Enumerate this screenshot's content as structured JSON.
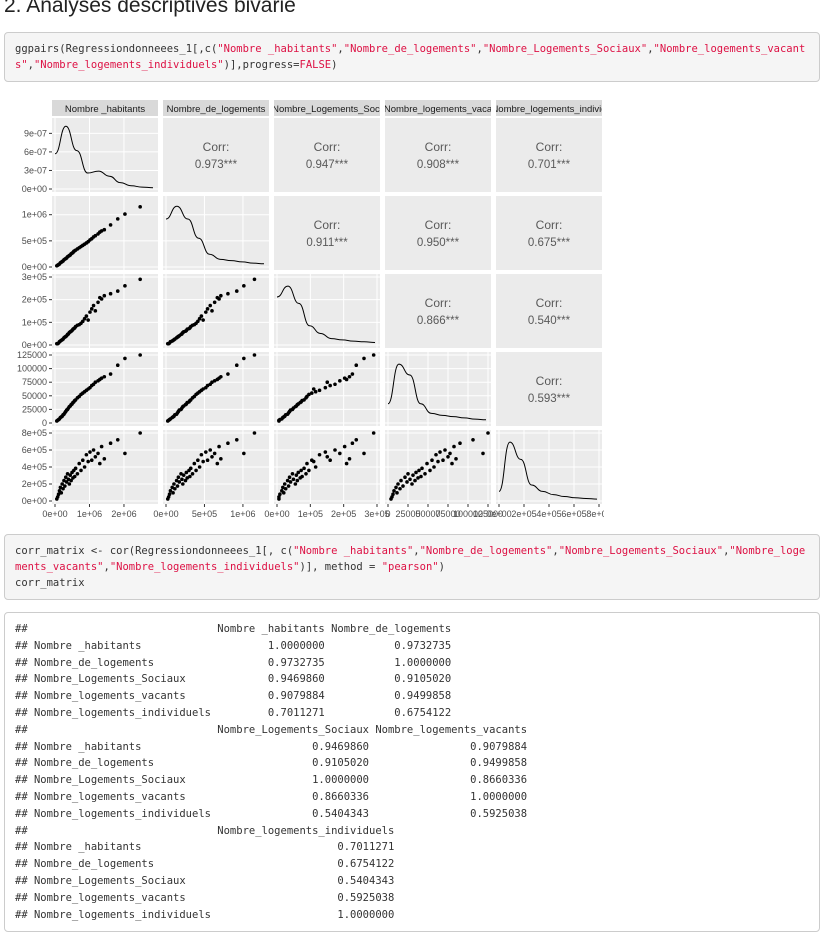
{
  "heading": "2. Analyses descriptives bivarié",
  "code1": {
    "fn": "ggpairs",
    "arg1": "(Regressiondonneees_1[,c(",
    "s1": "\"Nombre _habitants\"",
    "s2": "\"Nombre_de_logements\"",
    "s3": "\"Nombre_Logements_Sociaux\"",
    "s4": "\"Nombre_logements_vacants\"",
    "s5": "\"Nombre_logements_individuels\"",
    "tail": ")],progress=",
    "false_kw": "FALSE",
    "close": ")"
  },
  "code2": {
    "p1": "corr_matrix <- cor(Regressiondonneees_1[, c(",
    "s1": "\"Nombre _habitants\"",
    "s2": "\"Nombre_de_logements\"",
    "s3": "\"Nombre_Logements_Sociaux\"",
    "s4": "\"Nombre_logements_vacants\"",
    "s5": "\"Nombre_logements_individuels\"",
    "p2": ")], method = ",
    "s6": "\"pearson\"",
    "p3": ")",
    "line2": "corr_matrix"
  },
  "output_lines": [
    "##                              Nombre _habitants Nombre_de_logements",
    "## Nombre _habitants                    1.0000000           0.9732735",
    "## Nombre_de_logements                  0.9732735           1.0000000",
    "## Nombre_Logements_Sociaux             0.9469860           0.9105020",
    "## Nombre_logements_vacants             0.9079884           0.9499858",
    "## Nombre_logements_individuels         0.7011271           0.6754122",
    "##                              Nombre_Logements_Sociaux Nombre_logements_vacants",
    "## Nombre _habitants                           0.9469860                0.9079884",
    "## Nombre_de_logements                         0.9105020                0.9499858",
    "## Nombre_Logements_Sociaux                    1.0000000                0.8660336",
    "## Nombre_logements_vacants                    0.8660336                1.0000000",
    "## Nombre_logements_individuels                0.5404343                0.5925038",
    "##                              Nombre_logements_individuels",
    "## Nombre _habitants                               0.7011271",
    "## Nombre_de_logements                             0.6754122",
    "## Nombre_Logements_Sociaux                        0.5404343",
    "## Nombre_logements_vacants                        0.5925038",
    "## Nombre_logements_individuels                    1.0000000"
  ],
  "chart_data": {
    "type": "scatter",
    "variables": [
      "Nombre _habitants",
      "Nombre_de_logements",
      "Nombre_Logements_Sociaux",
      "Nombre_logements_vacants",
      "Nombre_logements_individuels"
    ],
    "column_strip_labels": [
      "Nombre _habitants",
      "Nombre_de_logements",
      "Nombre_Logements_Soci",
      "Nombre_logements_vaca",
      "Nombre_logements_individ"
    ],
    "row_strip_labels": [
      "Nombre _habitants",
      "Nombre_de_logements",
      "Nombre_Logements_Sociaux",
      "Nombre_logements_vacants",
      "Nombre_logements_individuels"
    ],
    "corr_label": "Corr:",
    "correlations": [
      {
        "row": 0,
        "col": 1,
        "text": "0.973***"
      },
      {
        "row": 0,
        "col": 2,
        "text": "0.947***"
      },
      {
        "row": 0,
        "col": 3,
        "text": "0.908***"
      },
      {
        "row": 0,
        "col": 4,
        "text": "0.701***"
      },
      {
        "row": 1,
        "col": 2,
        "text": "0.911***"
      },
      {
        "row": 1,
        "col": 3,
        "text": "0.950***"
      },
      {
        "row": 1,
        "col": 4,
        "text": "0.675***"
      },
      {
        "row": 2,
        "col": 3,
        "text": "0.866***"
      },
      {
        "row": 2,
        "col": 4,
        "text": "0.540***"
      },
      {
        "row": 3,
        "col": 4,
        "text": "0.593***"
      }
    ],
    "row_ticks": [
      {
        "values": [
          0,
          3e-07,
          6e-07,
          9e-07
        ],
        "labels": [
          "0e+00",
          "3e-07",
          "6e-07",
          "9e-07"
        ],
        "range": [
          0,
          1.1e-06
        ]
      },
      {
        "values": [
          0,
          500000,
          1000000
        ],
        "labels": [
          "0e+00",
          "5e+05",
          "1e+06"
        ],
        "range": [
          0,
          1300000
        ]
      },
      {
        "values": [
          0,
          100000,
          200000,
          300000
        ],
        "labels": [
          "0e+00",
          "1e+05",
          "2e+05",
          "3e+05"
        ],
        "range": [
          0,
          300000
        ]
      },
      {
        "values": [
          0,
          25000,
          50000,
          75000,
          100000,
          125000
        ],
        "labels": [
          "0",
          "25000",
          "50000",
          "75000",
          "100000",
          "125000"
        ],
        "range": [
          0,
          125000
        ]
      },
      {
        "values": [
          0,
          200000,
          400000,
          600000,
          800000
        ],
        "labels": [
          "0e+00",
          "2e+05",
          "4e+05",
          "6e+05",
          "8e+05"
        ],
        "range": [
          0,
          800000
        ]
      }
    ],
    "col_ticks": [
      {
        "values": [
          0,
          1000000,
          2000000
        ],
        "labels": [
          "0e+00",
          "1e+06",
          "2e+06"
        ],
        "range": [
          0,
          2900000
        ]
      },
      {
        "values": [
          0,
          500000,
          1000000
        ],
        "labels": [
          "0e+00",
          "5e+05",
          "1e+06"
        ],
        "range": [
          0,
          1300000
        ]
      },
      {
        "values": [
          0,
          100000,
          200000,
          300000
        ],
        "labels": [
          "0e+00",
          "1e+05",
          "2e+05",
          "3e+05"
        ],
        "range": [
          0,
          300000
        ]
      },
      {
        "values": [
          0,
          25000,
          50000,
          75000,
          100000,
          125000
        ],
        "labels": [
          "0",
          "25000",
          "50000",
          "75000",
          "100000",
          "125000"
        ],
        "range": [
          0,
          125000
        ]
      },
      {
        "values": [
          0,
          200000,
          400000,
          600000,
          800000
        ],
        "labels": [
          "0e+00",
          "2e+05",
          "4e+05",
          "6e+05",
          "8e+05"
        ],
        "range": [
          0,
          800000
        ]
      }
    ],
    "scale": [
      2600000,
      1150000,
      290000,
      125000,
      800000
    ],
    "points": [
      [
        0.02,
        0.02,
        0.02,
        0.03,
        0.03
      ],
      [
        0.03,
        0.03,
        0.02,
        0.04,
        0.06
      ],
      [
        0.04,
        0.04,
        0.03,
        0.05,
        0.1
      ],
      [
        0.05,
        0.05,
        0.05,
        0.06,
        0.15
      ],
      [
        0.06,
        0.07,
        0.06,
        0.08,
        0.2
      ],
      [
        0.07,
        0.08,
        0.07,
        0.09,
        0.12
      ],
      [
        0.08,
        0.09,
        0.08,
        0.1,
        0.25
      ],
      [
        0.09,
        0.1,
        0.09,
        0.12,
        0.18
      ],
      [
        0.1,
        0.12,
        0.11,
        0.13,
        0.3
      ],
      [
        0.11,
        0.13,
        0.12,
        0.15,
        0.22
      ],
      [
        0.12,
        0.14,
        0.13,
        0.17,
        0.35
      ],
      [
        0.13,
        0.15,
        0.14,
        0.19,
        0.28
      ],
      [
        0.14,
        0.17,
        0.16,
        0.2,
        0.4
      ],
      [
        0.15,
        0.18,
        0.17,
        0.22,
        0.32
      ],
      [
        0.16,
        0.19,
        0.19,
        0.24,
        0.25
      ],
      [
        0.17,
        0.2,
        0.2,
        0.25,
        0.38
      ],
      [
        0.18,
        0.22,
        0.21,
        0.27,
        0.3
      ],
      [
        0.19,
        0.23,
        0.22,
        0.28,
        0.42
      ],
      [
        0.2,
        0.24,
        0.24,
        0.3,
        0.34
      ],
      [
        0.21,
        0.26,
        0.25,
        0.31,
        0.45
      ],
      [
        0.22,
        0.27,
        0.26,
        0.33,
        0.36
      ],
      [
        0.23,
        0.28,
        0.28,
        0.34,
        0.48
      ],
      [
        0.25,
        0.3,
        0.3,
        0.37,
        0.4
      ],
      [
        0.27,
        0.32,
        0.31,
        0.39,
        0.55
      ],
      [
        0.29,
        0.34,
        0.33,
        0.42,
        0.45
      ],
      [
        0.31,
        0.36,
        0.36,
        0.44,
        0.6
      ],
      [
        0.33,
        0.38,
        0.4,
        0.46,
        0.5
      ],
      [
        0.35,
        0.4,
        0.44,
        0.48,
        0.68
      ],
      [
        0.37,
        0.42,
        0.38,
        0.5,
        0.58
      ],
      [
        0.39,
        0.45,
        0.5,
        0.52,
        0.72
      ],
      [
        0.41,
        0.47,
        0.55,
        0.55,
        0.6
      ],
      [
        0.43,
        0.5,
        0.6,
        0.57,
        0.75
      ],
      [
        0.45,
        0.52,
        0.52,
        0.6,
        0.65
      ],
      [
        0.48,
        0.55,
        0.65,
        0.62,
        0.7
      ],
      [
        0.5,
        0.58,
        0.72,
        0.64,
        0.55
      ],
      [
        0.52,
        0.6,
        0.7,
        0.66,
        0.8
      ],
      [
        0.55,
        0.62,
        0.75,
        0.68,
        0.62
      ],
      [
        0.62,
        0.7,
        0.78,
        0.72,
        0.85
      ],
      [
        0.7,
        0.8,
        0.82,
        0.85,
        0.9
      ],
      [
        0.78,
        0.88,
        0.9,
        0.95,
        0.7
      ],
      [
        0.95,
        1.0,
        1.0,
        1.0,
        1.0
      ]
    ],
    "density_curves": [
      [
        0.55,
        0.98,
        0.6,
        0.25,
        0.28,
        0.2,
        0.1,
        0.05,
        0.03,
        0.02
      ],
      [
        0.75,
        0.95,
        0.75,
        0.45,
        0.2,
        0.12,
        0.1,
        0.08,
        0.06,
        0.05
      ],
      [
        0.75,
        0.92,
        0.65,
        0.3,
        0.18,
        0.1,
        0.08,
        0.06,
        0.05,
        0.04
      ],
      [
        0.3,
        0.92,
        0.75,
        0.3,
        0.15,
        0.12,
        0.1,
        0.08,
        0.06,
        0.05
      ],
      [
        0.15,
        0.92,
        0.65,
        0.25,
        0.15,
        0.1,
        0.07,
        0.05,
        0.04,
        0.03
      ]
    ]
  }
}
